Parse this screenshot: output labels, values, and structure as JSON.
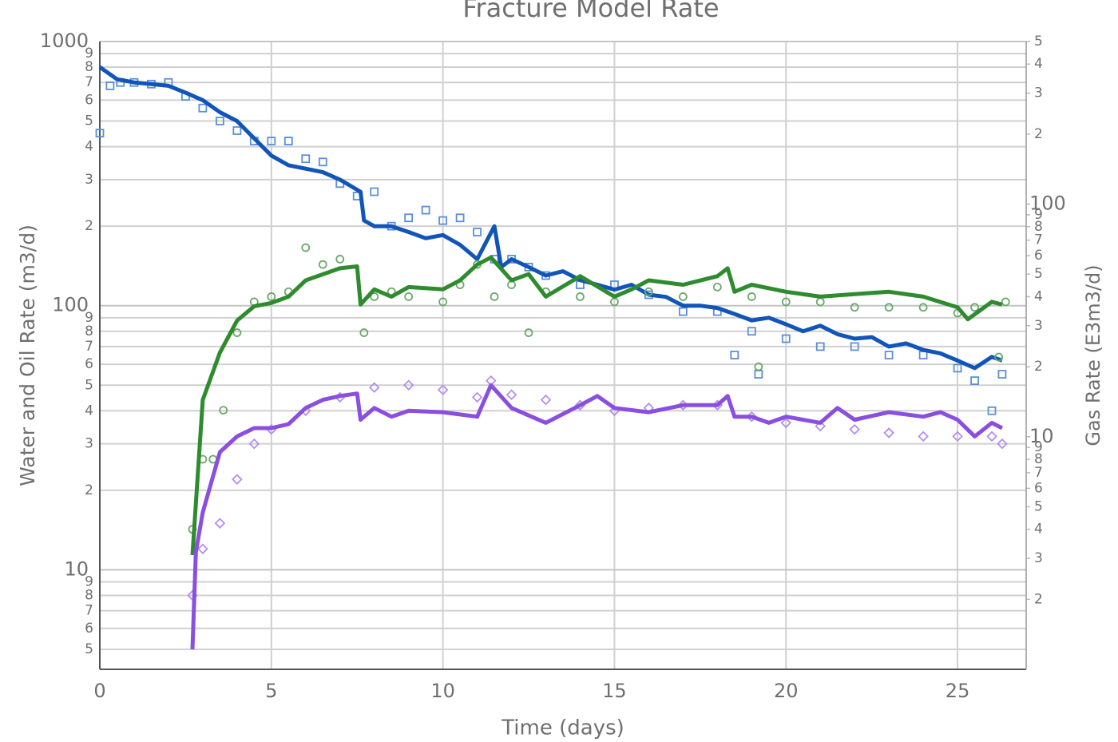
{
  "chart_data": {
    "type": "line",
    "title": "Fracture Model Rate",
    "xlabel": "Time (days)",
    "ylabel": "Water and Oil Rate (m3/d)",
    "y2label": "Gas Rate (E3m3/d)",
    "xlim": [
      0,
      27
    ],
    "xticks": [
      0,
      5,
      10,
      15,
      20,
      25
    ],
    "ylim": [
      4.2,
      1000
    ],
    "yscale": "log",
    "yticks": [
      5,
      6,
      7,
      8,
      9,
      10,
      {
        "value": 20,
        "label": "2"
      },
      {
        "value": 30,
        "label": "3"
      },
      {
        "value": 40,
        "label": "4"
      },
      {
        "value": 50,
        "label": "5"
      },
      {
        "value": 60,
        "label": "6"
      },
      {
        "value": 70,
        "label": "7"
      },
      {
        "value": 80,
        "label": "8"
      },
      {
        "value": 90,
        "label": "9"
      },
      100,
      {
        "value": 200,
        "label": "2"
      },
      {
        "value": 300,
        "label": "3"
      },
      {
        "value": 400,
        "label": "4"
      },
      {
        "value": 500,
        "label": "5"
      },
      {
        "value": 600,
        "label": "6"
      },
      {
        "value": 700,
        "label": "7"
      },
      {
        "value": 800,
        "label": "8"
      },
      {
        "value": 900,
        "label": "9"
      },
      1000
    ],
    "y2lim": [
      1,
      500
    ],
    "y2scale": "log",
    "y2ticks": [
      2,
      3,
      4,
      5,
      6,
      7,
      8,
      9,
      10,
      {
        "value": 20,
        "label": "2"
      },
      {
        "value": 30,
        "label": "3"
      },
      {
        "value": 40,
        "label": "4"
      },
      {
        "value": 50,
        "label": "5"
      },
      {
        "value": 60,
        "label": "6"
      },
      {
        "value": 70,
        "label": "7"
      },
      {
        "value": 80,
        "label": "8"
      },
      {
        "value": 90,
        "label": "9"
      },
      100,
      {
        "value": 200,
        "label": "2"
      },
      {
        "value": 300,
        "label": "3"
      },
      {
        "value": 400,
        "label": "4"
      },
      {
        "value": 500,
        "label": "5"
      }
    ],
    "grid": true,
    "series": [
      {
        "mode": "markers",
        "marker": "square",
        "color": "#5a8fd8",
        "x": [
          0,
          0.3,
          0.6,
          1,
          1.5,
          2,
          2.5,
          3,
          3.5,
          4,
          4.5,
          5,
          5.5,
          6,
          6.5,
          7,
          7.5,
          8,
          8.5,
          9,
          9.5,
          10,
          10.5,
          11,
          11.5,
          12,
          12.5,
          13,
          14,
          15,
          16,
          17,
          18,
          18.5,
          19,
          19.2,
          20,
          21,
          22,
          23,
          24,
          25,
          25.5,
          26,
          26.3
        ],
        "values": [
          450,
          680,
          700,
          700,
          690,
          700,
          620,
          560,
          500,
          460,
          420,
          420,
          420,
          360,
          350,
          290,
          260,
          270,
          200,
          215,
          230,
          210,
          215,
          190,
          150,
          150,
          140,
          130,
          120,
          120,
          110,
          95,
          95,
          65,
          80,
          55,
          75,
          70,
          70,
          65,
          65,
          58,
          52,
          40,
          55
        ]
      },
      {
        "mode": "lines",
        "color": "#1255b8",
        "x": [
          0,
          0.5,
          1,
          2,
          2.5,
          3,
          3.5,
          4,
          4.5,
          5,
          5.5,
          6,
          6.5,
          7,
          7.6,
          7.7,
          8,
          8.5,
          9,
          9.5,
          10,
          10.5,
          11,
          11.5,
          11.7,
          12,
          12.5,
          13,
          13.5,
          14,
          14.5,
          15,
          15.5,
          16,
          16.5,
          17,
          17.5,
          18,
          18.5,
          19,
          19.5,
          20,
          20.5,
          21,
          21.5,
          22,
          22.5,
          23,
          23.5,
          24,
          24.5,
          25,
          25.5,
          26,
          26.3
        ],
        "values": [
          800,
          720,
          700,
          680,
          640,
          600,
          540,
          500,
          430,
          370,
          340,
          330,
          320,
          300,
          270,
          210,
          200,
          200,
          190,
          180,
          185,
          170,
          150,
          200,
          140,
          150,
          140,
          130,
          135,
          125,
          120,
          115,
          120,
          110,
          108,
          100,
          100,
          98,
          93,
          88,
          90,
          85,
          80,
          84,
          78,
          75,
          76,
          70,
          72,
          68,
          66,
          62,
          58,
          64,
          62
        ]
      },
      {
        "mode": "markers",
        "marker": "circle",
        "color": "#6aa96a",
        "axis": "y2",
        "x": [
          2.7,
          3,
          3.3,
          3.6,
          4,
          4.5,
          5,
          5.5,
          6,
          6.5,
          7,
          7.7,
          8,
          8.5,
          9,
          10,
          10.5,
          11,
          11.5,
          12,
          12.5,
          13,
          14,
          15,
          16,
          17,
          18,
          19,
          19.2,
          20,
          21,
          22,
          23,
          24,
          25,
          25.5,
          26.2,
          26.4
        ],
        "values": [
          4,
          8,
          8,
          13,
          28,
          38,
          40,
          42,
          65,
          55,
          58,
          28,
          40,
          42,
          40,
          38,
          45,
          55,
          40,
          45,
          28,
          42,
          40,
          38,
          42,
          40,
          44,
          40,
          20,
          38,
          38,
          36,
          36,
          36,
          34,
          36,
          22,
          38
        ]
      },
      {
        "mode": "lines",
        "color": "#2e8b2e",
        "axis": "y2",
        "x": [
          2.7,
          3,
          3.5,
          4,
          4.5,
          5,
          5.5,
          6,
          7,
          7.5,
          7.6,
          8,
          8.5,
          9,
          10,
          10.5,
          11,
          11.4,
          12,
          12.5,
          13,
          14,
          15,
          15.5,
          16,
          17,
          18,
          18.3,
          18.5,
          19,
          20,
          21,
          22,
          23,
          24,
          25,
          25.3,
          26,
          26.3
        ],
        "values": [
          3.1,
          14.4,
          23,
          31.6,
          36.4,
          37.6,
          40,
          47,
          53,
          54,
          37,
          43,
          40,
          44,
          43,
          47,
          55,
          59,
          47,
          50,
          40,
          49,
          40,
          43,
          47,
          45,
          49,
          53,
          42,
          45,
          42,
          40,
          41,
          42,
          40,
          36,
          32,
          38,
          37
        ]
      },
      {
        "mode": "markers",
        "marker": "diamond",
        "color": "#b48ef0",
        "x": [
          2.7,
          3,
          3.5,
          4,
          4.5,
          5,
          6,
          7,
          8,
          9,
          10,
          11,
          11.4,
          12,
          13,
          14,
          15,
          16,
          17,
          18,
          19,
          20,
          21,
          22,
          23,
          24,
          25,
          26,
          26.3
        ],
        "values": [
          8,
          12,
          15,
          22,
          30,
          34,
          40,
          45,
          49,
          50,
          48,
          45,
          52,
          46,
          44,
          42,
          40,
          41,
          42,
          42,
          38,
          36,
          35,
          34,
          33,
          32,
          32,
          32,
          30
        ]
      },
      {
        "mode": "lines",
        "color": "#8a4fe0",
        "x": [
          2.7,
          2.8,
          3,
          3.5,
          4,
          4.5,
          5,
          5.5,
          6,
          6.5,
          7,
          7.5,
          7.6,
          8,
          8.5,
          9,
          10,
          11,
          11.4,
          12,
          13,
          14,
          14.5,
          15,
          16,
          17,
          18,
          18.3,
          18.5,
          19,
          19.5,
          20,
          21,
          21.5,
          22,
          23,
          24,
          24.5,
          25,
          25.5,
          26,
          26.3
        ],
        "values": [
          5,
          11.7,
          16.5,
          27.9,
          32,
          34.4,
          34.4,
          35.6,
          41,
          44,
          45.5,
          46.5,
          37,
          41,
          38,
          40,
          39.5,
          38,
          50,
          41,
          36,
          42,
          45.5,
          41,
          39.5,
          42,
          42,
          45.5,
          38,
          38,
          36,
          38,
          36,
          41,
          37,
          39.5,
          38,
          39.5,
          37,
          32,
          36,
          34.4
        ]
      }
    ]
  }
}
